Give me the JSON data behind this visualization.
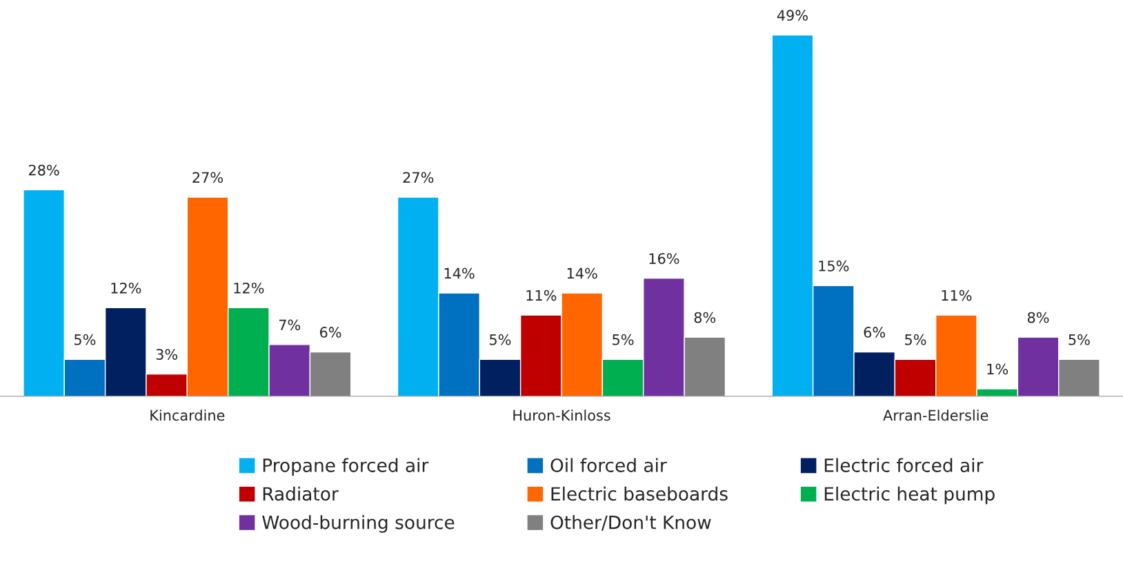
{
  "chart_data": {
    "type": "bar",
    "categories": [
      "Kincardine",
      "Huron-Kinloss",
      "Arran-Elderslie"
    ],
    "series": [
      {
        "name": "Propane forced air",
        "color": "#00b0f0",
        "values": [
          28,
          27,
          49
        ],
        "value_labels": [
          "28%",
          "27%",
          "49%"
        ]
      },
      {
        "name": "Oil forced air",
        "color": "#0070c0",
        "values": [
          5,
          14,
          15
        ],
        "value_labels": [
          "5%",
          "14%",
          "15%"
        ]
      },
      {
        "name": "Electric forced air",
        "color": "#002060",
        "values": [
          12,
          5,
          6
        ],
        "value_labels": [
          "12%",
          "5%",
          "6%"
        ]
      },
      {
        "name": "Radiator",
        "color": "#c00000",
        "values": [
          3,
          11,
          5
        ],
        "value_labels": [
          "3%",
          "11%",
          "5%"
        ]
      },
      {
        "name": "Electric baseboards",
        "color": "#ff6600",
        "values": [
          27,
          14,
          11
        ],
        "value_labels": [
          "27%",
          "14%",
          "11%"
        ]
      },
      {
        "name": "Electric heat pump",
        "color": "#00b050",
        "values": [
          12,
          5,
          1
        ],
        "value_labels": [
          "12%",
          "5%",
          "1%"
        ]
      },
      {
        "name": "Wood-burning source",
        "color": "#7030a0",
        "values": [
          7,
          16,
          8
        ],
        "value_labels": [
          "7%",
          "16%",
          "8%"
        ]
      },
      {
        "name": "Other/Don't Know",
        "color": "#808080",
        "values": [
          6,
          8,
          5
        ],
        "value_labels": [
          "6%",
          "8%",
          "5%"
        ]
      }
    ],
    "legend": "bottom",
    "grid": false
  }
}
